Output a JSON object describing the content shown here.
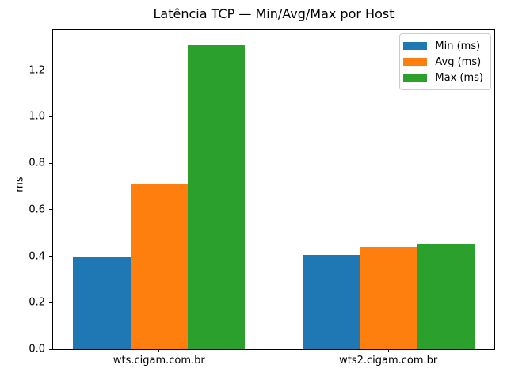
{
  "chart_data": {
    "type": "bar",
    "title": "Latência TCP — Min/Avg/Max por Host",
    "xlabel": "",
    "ylabel": "ms",
    "categories": [
      "wts.cigam.com.br",
      "wts2.cigam.com.br"
    ],
    "series": [
      {
        "name": "Min (ms)",
        "color": "#1f77b4",
        "values": [
          0.396,
          0.405
        ]
      },
      {
        "name": "Avg (ms)",
        "color": "#ff7f0e",
        "values": [
          0.707,
          0.439
        ]
      },
      {
        "name": "Max (ms)",
        "color": "#2ca02c",
        "values": [
          1.308,
          0.453
        ]
      }
    ],
    "group_centers": [
      0,
      1
    ],
    "bar_width": 0.25,
    "xlim": [
      -0.4625,
      1.4625
    ],
    "ylim": [
      0,
      1.373
    ],
    "yticks": [
      0.0,
      0.2,
      0.4,
      0.6,
      0.8,
      1.0,
      1.2
    ],
    "ytick_decimals": 1,
    "grid": false,
    "legend_position": "top-right",
    "colors": {
      "axis": "#000000",
      "text": "#000000",
      "legend_border": "#cccccc",
      "background": "#ffffff"
    }
  }
}
